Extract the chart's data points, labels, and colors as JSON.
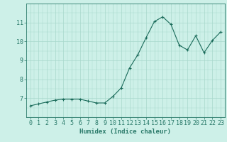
{
  "x": [
    0,
    1,
    2,
    3,
    4,
    5,
    6,
    7,
    8,
    9,
    10,
    11,
    12,
    13,
    14,
    15,
    16,
    17,
    18,
    19,
    20,
    21,
    22,
    23
  ],
  "y": [
    6.6,
    6.7,
    6.8,
    6.9,
    6.95,
    6.95,
    6.95,
    6.85,
    6.75,
    6.75,
    7.1,
    7.55,
    8.6,
    9.3,
    10.2,
    11.05,
    11.3,
    10.9,
    9.8,
    9.55,
    10.3,
    9.4,
    10.05,
    10.5
  ],
  "xlabel": "Humidex (Indice chaleur)",
  "ylim": [
    6.0,
    12.0
  ],
  "xlim": [
    -0.5,
    23.5
  ],
  "yticks": [
    7,
    8,
    9,
    10,
    11
  ],
  "xticks": [
    0,
    1,
    2,
    3,
    4,
    5,
    6,
    7,
    8,
    9,
    10,
    11,
    12,
    13,
    14,
    15,
    16,
    17,
    18,
    19,
    20,
    21,
    22,
    23
  ],
  "line_color": "#1a6b5a",
  "marker_color": "#1a6b5a",
  "bg_color": "#cdf0e8",
  "grid_color": "#a8d8cc",
  "axis_color": "#2a7a6a",
  "label_fontsize": 6.5,
  "tick_fontsize": 6.0
}
